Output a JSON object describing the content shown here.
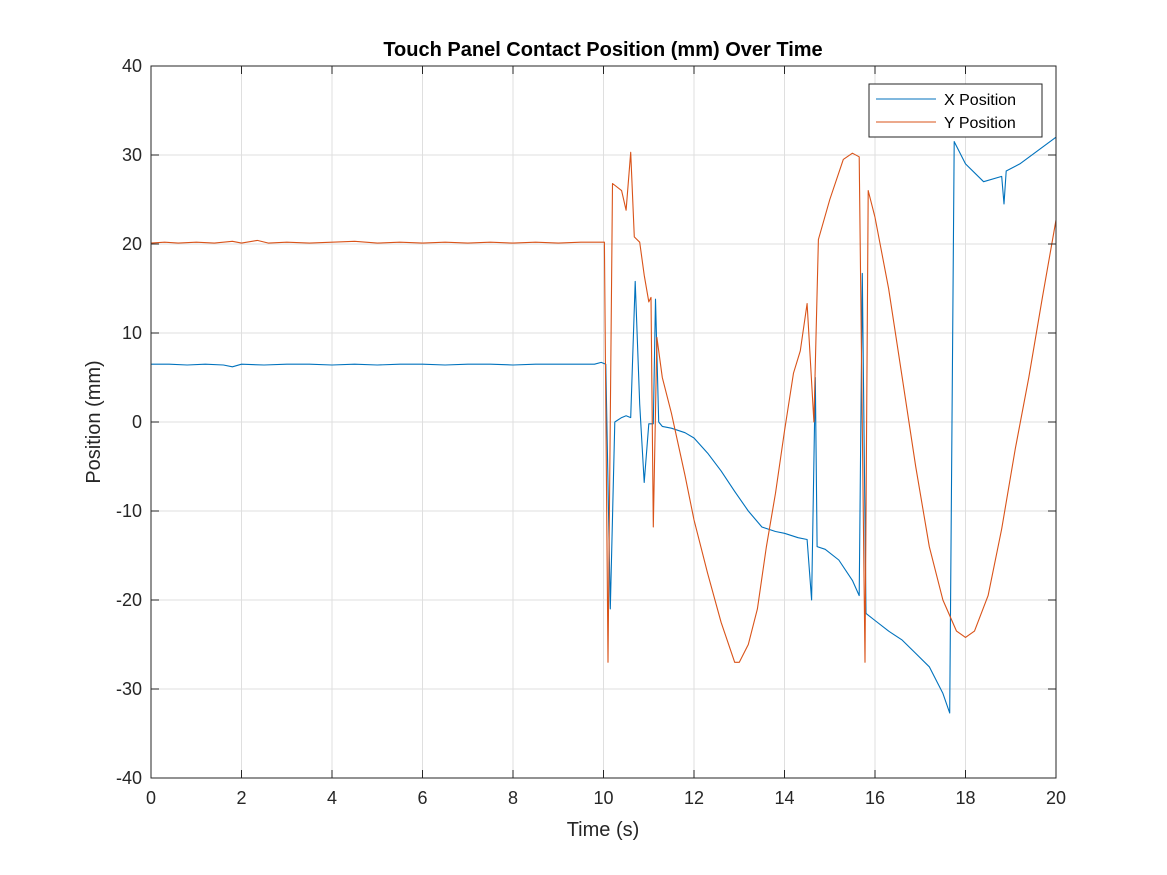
{
  "chart_data": {
    "type": "line",
    "title": "Touch Panel Contact Position (mm) Over Time",
    "xlabel": "Time (s)",
    "ylabel": "Position (mm)",
    "xlim": [
      0,
      20
    ],
    "ylim": [
      -40,
      40
    ],
    "xticks": [
      0,
      2,
      4,
      6,
      8,
      10,
      12,
      14,
      16,
      18,
      20
    ],
    "yticks": [
      -40,
      -30,
      -20,
      -10,
      0,
      10,
      20,
      30,
      40
    ],
    "grid": true,
    "legend_position": "top-right",
    "series": [
      {
        "name": "X Position",
        "color": "#0072BD",
        "points": [
          [
            0,
            6.5
          ],
          [
            0.4,
            6.5
          ],
          [
            0.8,
            6.4
          ],
          [
            1.2,
            6.5
          ],
          [
            1.6,
            6.4
          ],
          [
            1.8,
            6.2
          ],
          [
            2.0,
            6.5
          ],
          [
            2.5,
            6.4
          ],
          [
            3.0,
            6.5
          ],
          [
            3.5,
            6.5
          ],
          [
            4.0,
            6.4
          ],
          [
            4.5,
            6.5
          ],
          [
            5.0,
            6.4
          ],
          [
            5.5,
            6.5
          ],
          [
            6.0,
            6.5
          ],
          [
            6.5,
            6.4
          ],
          [
            7.0,
            6.5
          ],
          [
            7.5,
            6.5
          ],
          [
            8.0,
            6.4
          ],
          [
            8.5,
            6.5
          ],
          [
            9.0,
            6.5
          ],
          [
            9.5,
            6.5
          ],
          [
            9.8,
            6.5
          ],
          [
            9.95,
            6.7
          ],
          [
            10.05,
            6.5
          ],
          [
            10.15,
            -21
          ],
          [
            10.25,
            0
          ],
          [
            10.4,
            0.5
          ],
          [
            10.5,
            0.7
          ],
          [
            10.6,
            0.5
          ],
          [
            10.7,
            15.8
          ],
          [
            10.8,
            2
          ],
          [
            10.9,
            -6.8
          ],
          [
            11.0,
            -0.2
          ],
          [
            11.1,
            -0.2
          ],
          [
            11.15,
            13.8
          ],
          [
            11.22,
            0
          ],
          [
            11.3,
            -0.5
          ],
          [
            11.5,
            -0.7
          ],
          [
            11.8,
            -1.2
          ],
          [
            12.0,
            -1.8
          ],
          [
            12.3,
            -3.5
          ],
          [
            12.6,
            -5.5
          ],
          [
            12.9,
            -7.8
          ],
          [
            13.2,
            -10
          ],
          [
            13.5,
            -11.8
          ],
          [
            13.8,
            -12.3
          ],
          [
            14.0,
            -12.5
          ],
          [
            14.3,
            -13
          ],
          [
            14.5,
            -13.2
          ],
          [
            14.6,
            -20
          ],
          [
            14.68,
            5
          ],
          [
            14.72,
            -14
          ],
          [
            14.9,
            -14.3
          ],
          [
            15.2,
            -15.5
          ],
          [
            15.5,
            -17.8
          ],
          [
            15.65,
            -19.5
          ],
          [
            15.72,
            16.7
          ],
          [
            15.8,
            -21.5
          ],
          [
            16.0,
            -22.3
          ],
          [
            16.3,
            -23.5
          ],
          [
            16.6,
            -24.5
          ],
          [
            16.9,
            -26
          ],
          [
            17.2,
            -27.5
          ],
          [
            17.5,
            -30.5
          ],
          [
            17.65,
            -32.7
          ],
          [
            17.75,
            31.5
          ],
          [
            18.0,
            29
          ],
          [
            18.4,
            27
          ],
          [
            18.8,
            27.6
          ],
          [
            18.85,
            24.5
          ],
          [
            18.9,
            28.2
          ],
          [
            19.2,
            29
          ],
          [
            19.6,
            30.5
          ],
          [
            20.0,
            32
          ]
        ]
      },
      {
        "name": "Y Position",
        "color": "#D95319",
        "points": [
          [
            0,
            20.1
          ],
          [
            0.3,
            20.2
          ],
          [
            0.6,
            20.1
          ],
          [
            1.0,
            20.2
          ],
          [
            1.4,
            20.1
          ],
          [
            1.8,
            20.3
          ],
          [
            2.0,
            20.1
          ],
          [
            2.35,
            20.4
          ],
          [
            2.6,
            20.1
          ],
          [
            3.0,
            20.2
          ],
          [
            3.5,
            20.1
          ],
          [
            4.0,
            20.2
          ],
          [
            4.5,
            20.3
          ],
          [
            5.0,
            20.1
          ],
          [
            5.5,
            20.2
          ],
          [
            6.0,
            20.1
          ],
          [
            6.5,
            20.2
          ],
          [
            7.0,
            20.1
          ],
          [
            7.5,
            20.2
          ],
          [
            8.0,
            20.1
          ],
          [
            8.5,
            20.2
          ],
          [
            9.0,
            20.1
          ],
          [
            9.5,
            20.2
          ],
          [
            9.98,
            20.2
          ],
          [
            10.02,
            20.2
          ],
          [
            10.1,
            -27
          ],
          [
            10.2,
            26.8
          ],
          [
            10.4,
            26
          ],
          [
            10.5,
            23.8
          ],
          [
            10.6,
            30.3
          ],
          [
            10.68,
            20.8
          ],
          [
            10.8,
            20.2
          ],
          [
            10.9,
            16.5
          ],
          [
            11.0,
            13.5
          ],
          [
            11.05,
            14
          ],
          [
            11.1,
            -11.8
          ],
          [
            11.18,
            9.5
          ],
          [
            11.3,
            5
          ],
          [
            11.5,
            1
          ],
          [
            11.8,
            -6
          ],
          [
            12.0,
            -11
          ],
          [
            12.3,
            -17
          ],
          [
            12.6,
            -22.5
          ],
          [
            12.9,
            -27
          ],
          [
            13.0,
            -27
          ],
          [
            13.2,
            -25
          ],
          [
            13.4,
            -21
          ],
          [
            13.6,
            -14
          ],
          [
            13.8,
            -8
          ],
          [
            14.0,
            -1
          ],
          [
            14.2,
            5.5
          ],
          [
            14.35,
            8
          ],
          [
            14.5,
            13.3
          ],
          [
            14.65,
            0
          ],
          [
            14.75,
            20.5
          ],
          [
            15.0,
            25
          ],
          [
            15.3,
            29.5
          ],
          [
            15.5,
            30.2
          ],
          [
            15.65,
            29.8
          ],
          [
            15.78,
            -27
          ],
          [
            15.85,
            26
          ],
          [
            16.0,
            23
          ],
          [
            16.3,
            15
          ],
          [
            16.6,
            5
          ],
          [
            16.9,
            -5
          ],
          [
            17.2,
            -14
          ],
          [
            17.5,
            -20
          ],
          [
            17.8,
            -23.5
          ],
          [
            18.0,
            -24.2
          ],
          [
            18.2,
            -23.5
          ],
          [
            18.5,
            -19.5
          ],
          [
            18.8,
            -12
          ],
          [
            19.1,
            -3
          ],
          [
            19.4,
            5
          ],
          [
            19.7,
            14
          ],
          [
            20.0,
            22.7
          ]
        ]
      }
    ]
  }
}
